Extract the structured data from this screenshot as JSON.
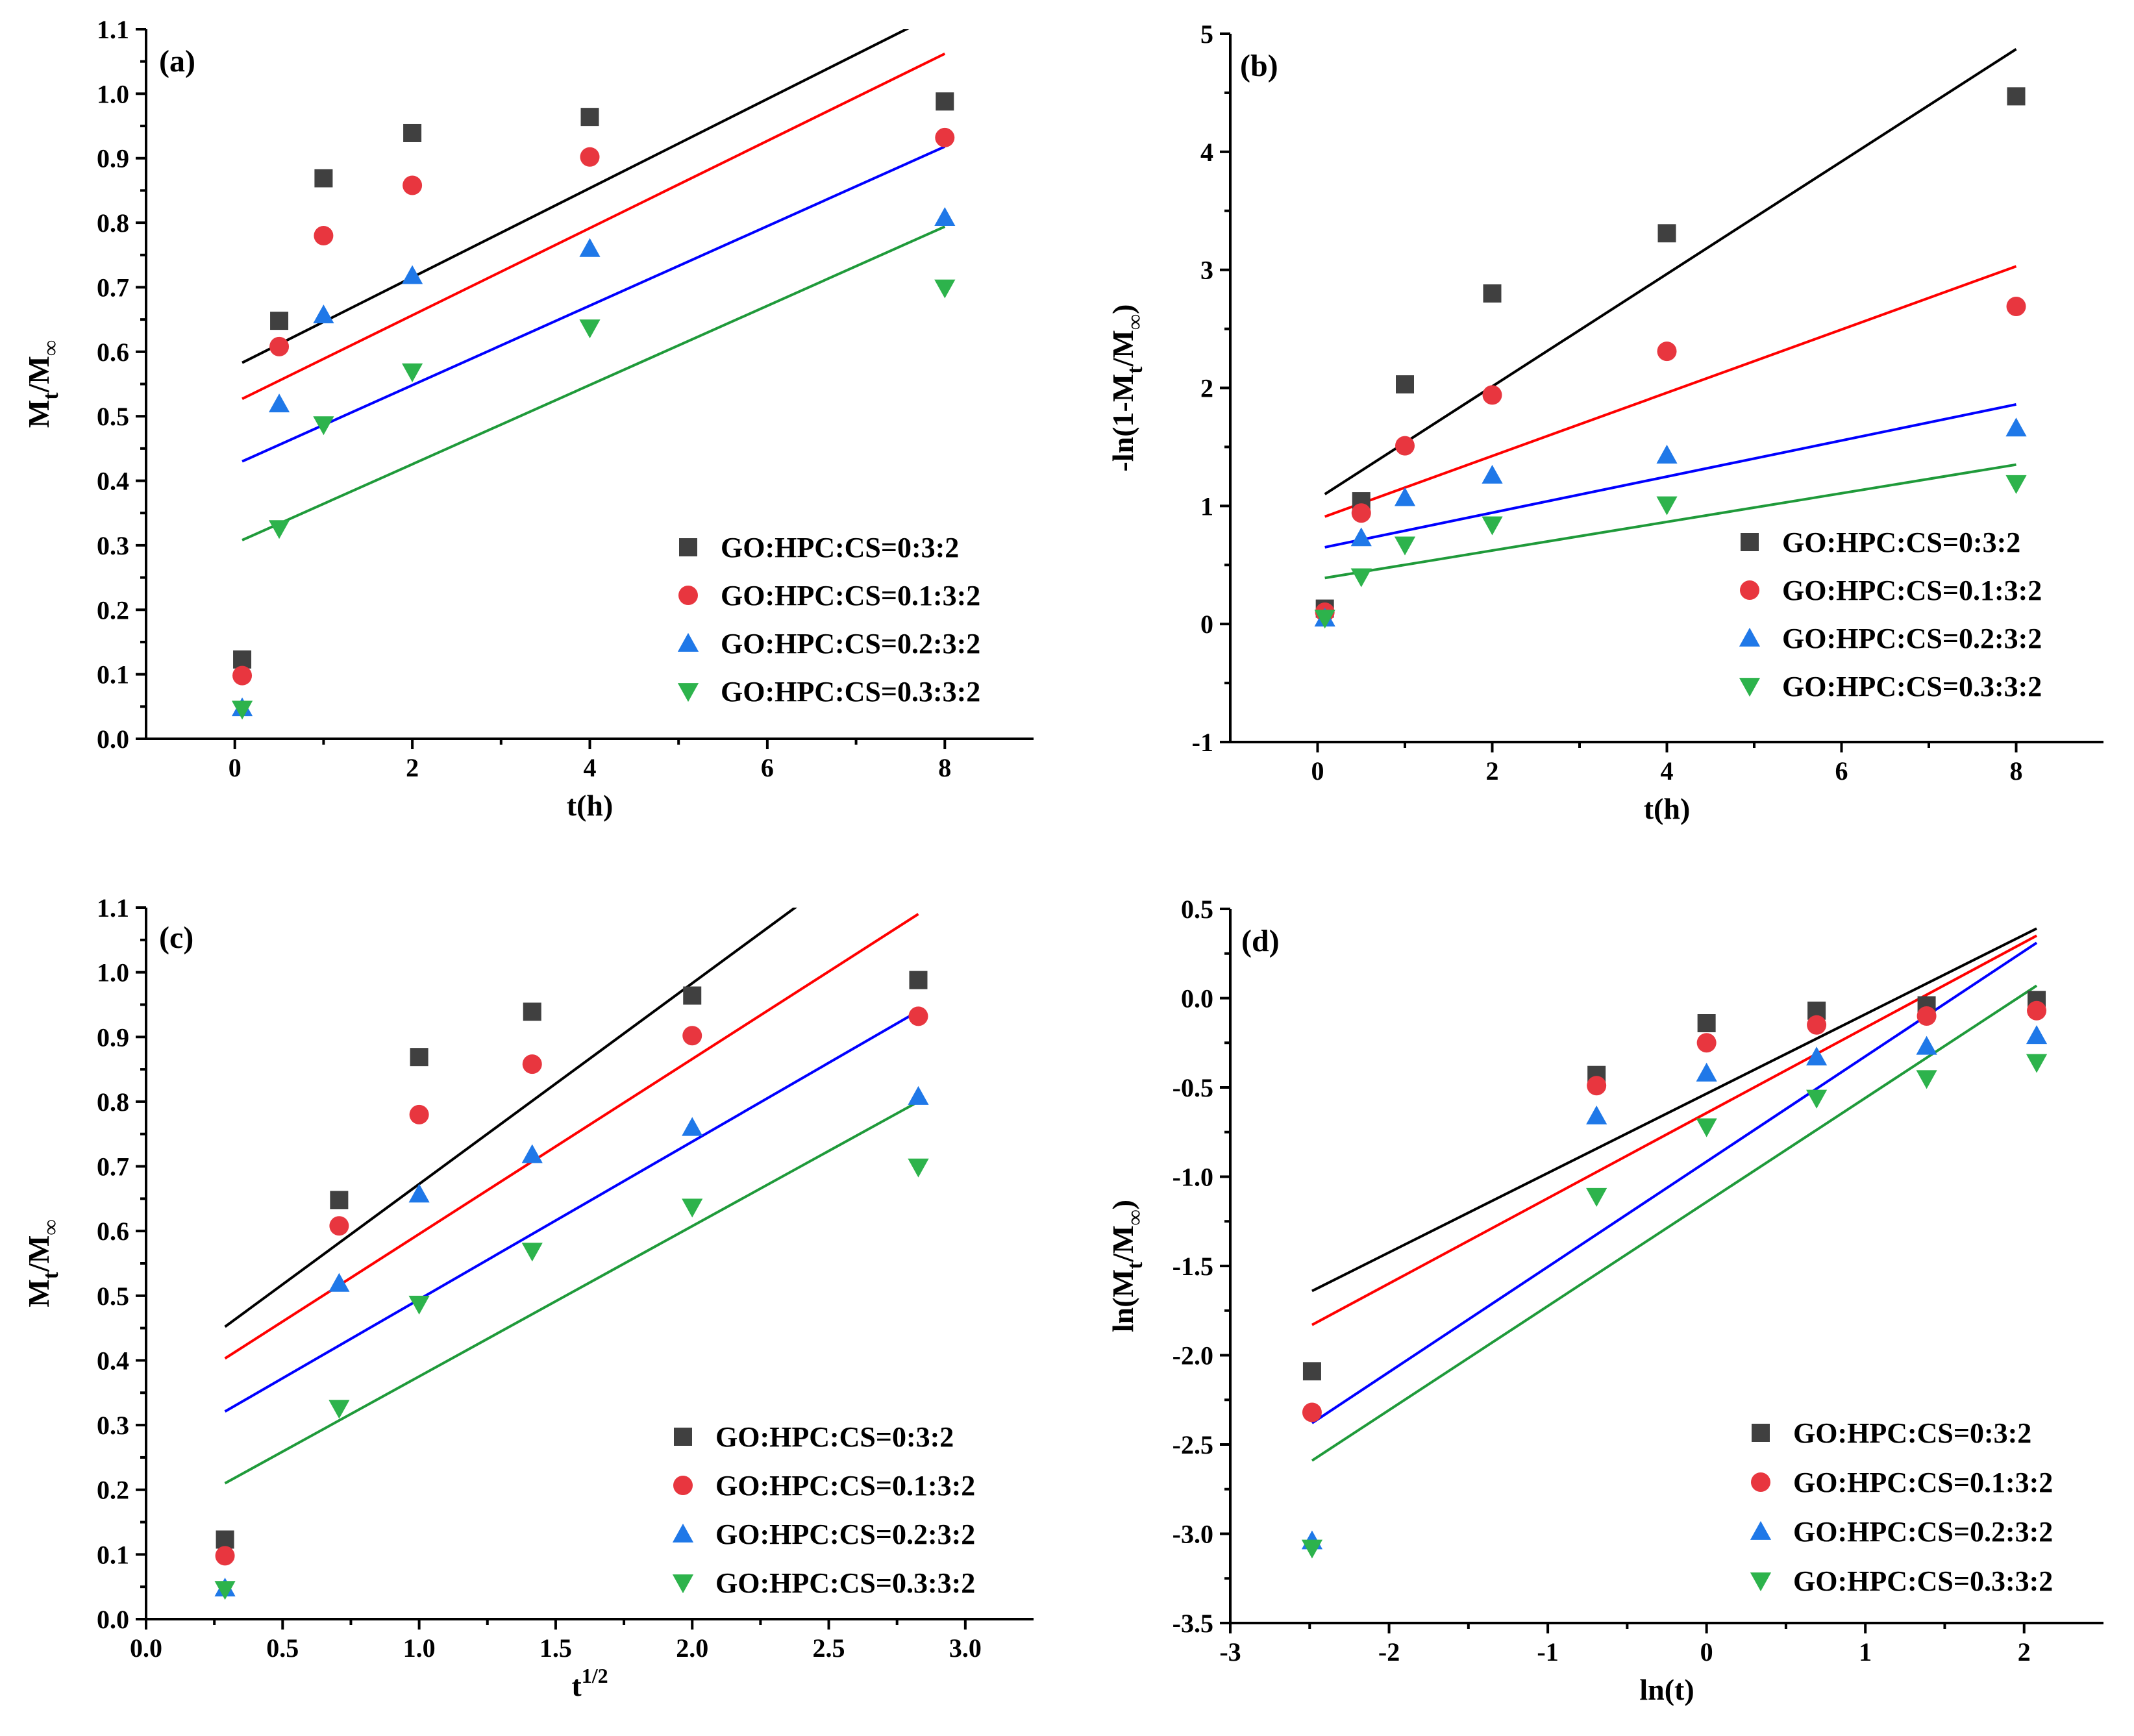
{
  "colors": {
    "black": "#000000",
    "gray": "#404040",
    "red": "#ff0000",
    "red_marker": "#e8363f",
    "blue": "#0000ff",
    "blue_marker": "#1f78e8",
    "green": "#1f9a3a",
    "green_marker": "#2db34c"
  },
  "legend_labels": [
    "GO:HPC:CS=0:3:2",
    "GO:HPC:CS=0.1:3:2",
    "GO:HPC:CS=0.2:3:2",
    "GO:HPC:CS=0.3:3:2"
  ],
  "chart_data": [
    {
      "panel_label": "(a)",
      "type": "scatter",
      "xlabel": "t(h)",
      "ylabel_main": "M",
      "ylabel_sub1": "t",
      "ylabel_mid": "/M",
      "ylabel_sub2": "∞",
      "ylabel_open": "",
      "ylabel_close": "",
      "xlim": [
        -1,
        9
      ],
      "ylim": [
        0,
        1.1
      ],
      "xticks": [
        0,
        2,
        4,
        6,
        8
      ],
      "xtick_labels": [
        "0",
        "2",
        "4",
        "6",
        "8"
      ],
      "yticks": [
        0.0,
        0.1,
        0.2,
        0.3,
        0.4,
        0.5,
        0.6,
        0.7,
        0.8,
        0.9,
        1.0,
        1.1
      ],
      "ytick_labels": [
        "0.0",
        "0.1",
        "0.2",
        "0.3",
        "0.4",
        "0.5",
        "0.6",
        "0.7",
        "0.8",
        "0.9",
        "1.0",
        "1.1"
      ],
      "x": [
        0.083,
        0.5,
        1,
        2,
        4,
        8
      ],
      "series": [
        {
          "name": "GO:HPC:CS=0:3:2",
          "marker": "square",
          "values": [
            0.123,
            0.648,
            0.869,
            0.939,
            0.964,
            0.988
          ],
          "fit": {
            "x": [
              0.083,
              8
            ],
            "y": [
              0.583,
              1.13
            ]
          }
        },
        {
          "name": "GO:HPC:CS=0.1:3:2",
          "marker": "circle",
          "values": [
            0.098,
            0.608,
            0.78,
            0.858,
            0.902,
            0.932
          ],
          "fit": {
            "x": [
              0.083,
              8
            ],
            "y": [
              0.527,
              1.062
            ]
          }
        },
        {
          "name": "GO:HPC:CS=0.2:3:2",
          "marker": "triangle-up",
          "values": [
            0.048,
            0.519,
            0.657,
            0.718,
            0.76,
            0.808
          ],
          "fit": {
            "x": [
              0.083,
              8
            ],
            "y": [
              0.43,
              0.918
            ]
          }
        },
        {
          "name": "GO:HPC:CS=0.3:3:2",
          "marker": "triangle-down",
          "values": [
            0.046,
            0.326,
            0.487,
            0.569,
            0.637,
            0.699
          ],
          "fit": {
            "x": [
              0.083,
              8
            ],
            "y": [
              0.308,
              0.794
            ]
          }
        }
      ],
      "legend_position": "bottom-right",
      "grid": false
    },
    {
      "panel_label": "(b)",
      "type": "scatter",
      "xlabel": "t(h)",
      "ylabel_main": "M",
      "ylabel_sub1": "t",
      "ylabel_mid": "/M",
      "ylabel_sub2": "∞",
      "ylabel_open": "-ln(1-",
      "ylabel_close": ")",
      "xlim": [
        -1,
        9
      ],
      "ylim": [
        -1,
        5
      ],
      "xticks": [
        0,
        2,
        4,
        6,
        8
      ],
      "xtick_labels": [
        "0",
        "2",
        "4",
        "6",
        "8"
      ],
      "yticks": [
        -1,
        0,
        1,
        2,
        3,
        4,
        5
      ],
      "ytick_labels": [
        "-1",
        "0",
        "1",
        "2",
        "3",
        "4",
        "5"
      ],
      "x": [
        0.083,
        0.5,
        1,
        2,
        4,
        8
      ],
      "series": [
        {
          "name": "GO:HPC:CS=0:3:2",
          "marker": "square",
          "values": [
            0.13,
            1.04,
            2.03,
            2.8,
            3.31,
            4.47
          ],
          "fit": {
            "x": [
              0.083,
              8
            ],
            "y": [
              1.1,
              4.87
            ]
          }
        },
        {
          "name": "GO:HPC:CS=0.1:3:2",
          "marker": "circle",
          "values": [
            0.1,
            0.94,
            1.51,
            1.94,
            2.31,
            2.69
          ],
          "fit": {
            "x": [
              0.083,
              8
            ],
            "y": [
              0.91,
              3.03
            ]
          }
        },
        {
          "name": "GO:HPC:CS=0.2:3:2",
          "marker": "triangle-up",
          "values": [
            0.05,
            0.73,
            1.07,
            1.26,
            1.43,
            1.66
          ],
          "fit": {
            "x": [
              0.083,
              8
            ],
            "y": [
              0.65,
              1.86
            ]
          }
        },
        {
          "name": "GO:HPC:CS=0.3:3:2",
          "marker": "triangle-down",
          "values": [
            0.05,
            0.4,
            0.67,
            0.84,
            1.01,
            1.19
          ],
          "fit": {
            "x": [
              0.083,
              8
            ],
            "y": [
              0.39,
              1.35
            ]
          }
        }
      ],
      "legend_position": "bottom-right",
      "grid": false
    },
    {
      "panel_label": "(c)",
      "type": "scatter",
      "xlabel": "t",
      "xlabel_sup": "1/2",
      "ylabel_main": "M",
      "ylabel_sub1": "t",
      "ylabel_mid": "/M",
      "ylabel_sub2": "∞",
      "ylabel_open": "",
      "ylabel_close": "",
      "xlim": [
        0,
        3.25
      ],
      "ylim": [
        0,
        1.1
      ],
      "xticks": [
        0.0,
        0.5,
        1.0,
        1.5,
        2.0,
        2.5,
        3.0
      ],
      "xtick_labels": [
        "0.0",
        "0.5",
        "1.0",
        "1.5",
        "2.0",
        "2.5",
        "3.0"
      ],
      "yticks": [
        0.0,
        0.1,
        0.2,
        0.3,
        0.4,
        0.5,
        0.6,
        0.7,
        0.8,
        0.9,
        1.0,
        1.1
      ],
      "ytick_labels": [
        "0.0",
        "0.1",
        "0.2",
        "0.3",
        "0.4",
        "0.5",
        "0.6",
        "0.7",
        "0.8",
        "0.9",
        "1.0",
        "1.1"
      ],
      "x": [
        0.289,
        0.707,
        1.0,
        1.414,
        2.0,
        2.828
      ],
      "series": [
        {
          "name": "GO:HPC:CS=0:3:2",
          "marker": "square",
          "values": [
            0.123,
            0.648,
            0.869,
            0.939,
            0.964,
            0.988
          ],
          "fit": {
            "x": [
              0.289,
              2.828
            ],
            "y": [
              0.452,
              1.24
            ]
          }
        },
        {
          "name": "GO:HPC:CS=0.1:3:2",
          "marker": "circle",
          "values": [
            0.098,
            0.608,
            0.78,
            0.858,
            0.902,
            0.932
          ],
          "fit": {
            "x": [
              0.289,
              2.828
            ],
            "y": [
              0.403,
              1.09
            ]
          }
        },
        {
          "name": "GO:HPC:CS=0.2:3:2",
          "marker": "triangle-up",
          "values": [
            0.048,
            0.519,
            0.657,
            0.718,
            0.76,
            0.808
          ],
          "fit": {
            "x": [
              0.289,
              2.828
            ],
            "y": [
              0.321,
              0.94
            ]
          }
        },
        {
          "name": "GO:HPC:CS=0.3:3:2",
          "marker": "triangle-down",
          "values": [
            0.046,
            0.326,
            0.487,
            0.569,
            0.637,
            0.699
          ],
          "fit": {
            "x": [
              0.289,
              2.828
            ],
            "y": [
              0.21,
              0.8
            ]
          }
        }
      ],
      "legend_position": "bottom-right",
      "grid": false
    },
    {
      "panel_label": "(d)",
      "type": "scatter",
      "xlabel": "ln(t)",
      "ylabel_main": "M",
      "ylabel_sub1": "t",
      "ylabel_mid": "/M",
      "ylabel_sub2": "∞",
      "ylabel_open": "ln(",
      "ylabel_close": ")",
      "xlim": [
        -3,
        2.5
      ],
      "ylim": [
        -3.5,
        0.5
      ],
      "xticks": [
        -3,
        -2,
        -1,
        0,
        1,
        2
      ],
      "xtick_labels": [
        "-3",
        "-2",
        "-1",
        "0",
        "1",
        "2"
      ],
      "yticks": [
        -3.5,
        -3.0,
        -2.5,
        -2.0,
        -1.5,
        -1.0,
        -0.5,
        0.0,
        0.5
      ],
      "ytick_labels": [
        "-3.5",
        "-3.0",
        "-2.5",
        "-2.0",
        "-1.5",
        "-1.0",
        "-0.5",
        "0.0",
        "0.5"
      ],
      "x": [
        -2.485,
        -0.693,
        0.0,
        0.693,
        1.386,
        2.079
      ],
      "series": [
        {
          "name": "GO:HPC:CS=0:3:2",
          "marker": "square",
          "values": [
            -2.09,
            -0.43,
            -0.14,
            -0.07,
            -0.04,
            -0.01
          ],
          "fit": {
            "x": [
              -2.485,
              2.079
            ],
            "y": [
              -1.64,
              0.39
            ]
          }
        },
        {
          "name": "GO:HPC:CS=0.1:3:2",
          "marker": "circle",
          "values": [
            -2.32,
            -0.49,
            -0.25,
            -0.15,
            -0.1,
            -0.07
          ],
          "fit": {
            "x": [
              -2.485,
              2.079
            ],
            "y": [
              -1.83,
              0.35
            ]
          }
        },
        {
          "name": "GO:HPC:CS=0.2:3:2",
          "marker": "triangle-up",
          "values": [
            -3.04,
            -0.66,
            -0.42,
            -0.33,
            -0.27,
            -0.21
          ],
          "fit": {
            "x": [
              -2.485,
              2.079
            ],
            "y": [
              -2.38,
              0.31
            ]
          }
        },
        {
          "name": "GO:HPC:CS=0.3:3:2",
          "marker": "triangle-down",
          "values": [
            -3.08,
            -1.11,
            -0.72,
            -0.56,
            -0.45,
            -0.36
          ],
          "fit": {
            "x": [
              -2.485,
              2.079
            ],
            "y": [
              -2.59,
              0.07
            ]
          }
        }
      ],
      "legend_position": "bottom-right",
      "grid": false
    }
  ]
}
